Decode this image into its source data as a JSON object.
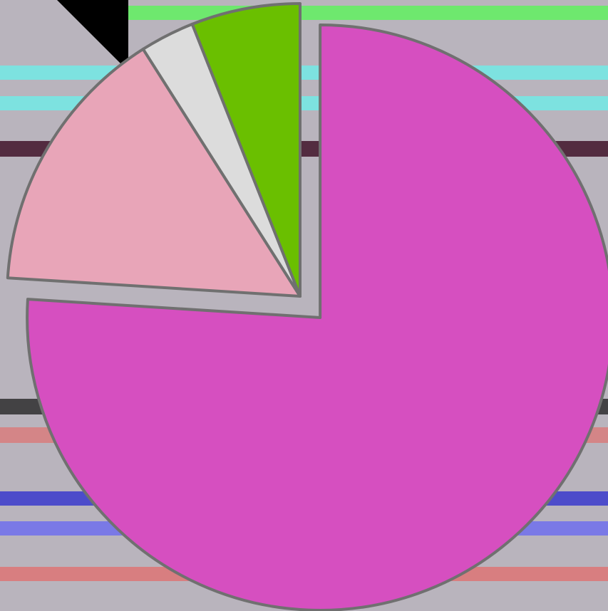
{
  "chart_data": {
    "type": "pie",
    "values": [
      76,
      15,
      3,
      6
    ],
    "colors": [
      "#d64fc0",
      "#e8a5b8",
      "#dcdcdc",
      "#6abf00"
    ],
    "explode": [
      0.1,
      0,
      0,
      0
    ],
    "start_angle": 90,
    "clockwise": true
  }
}
